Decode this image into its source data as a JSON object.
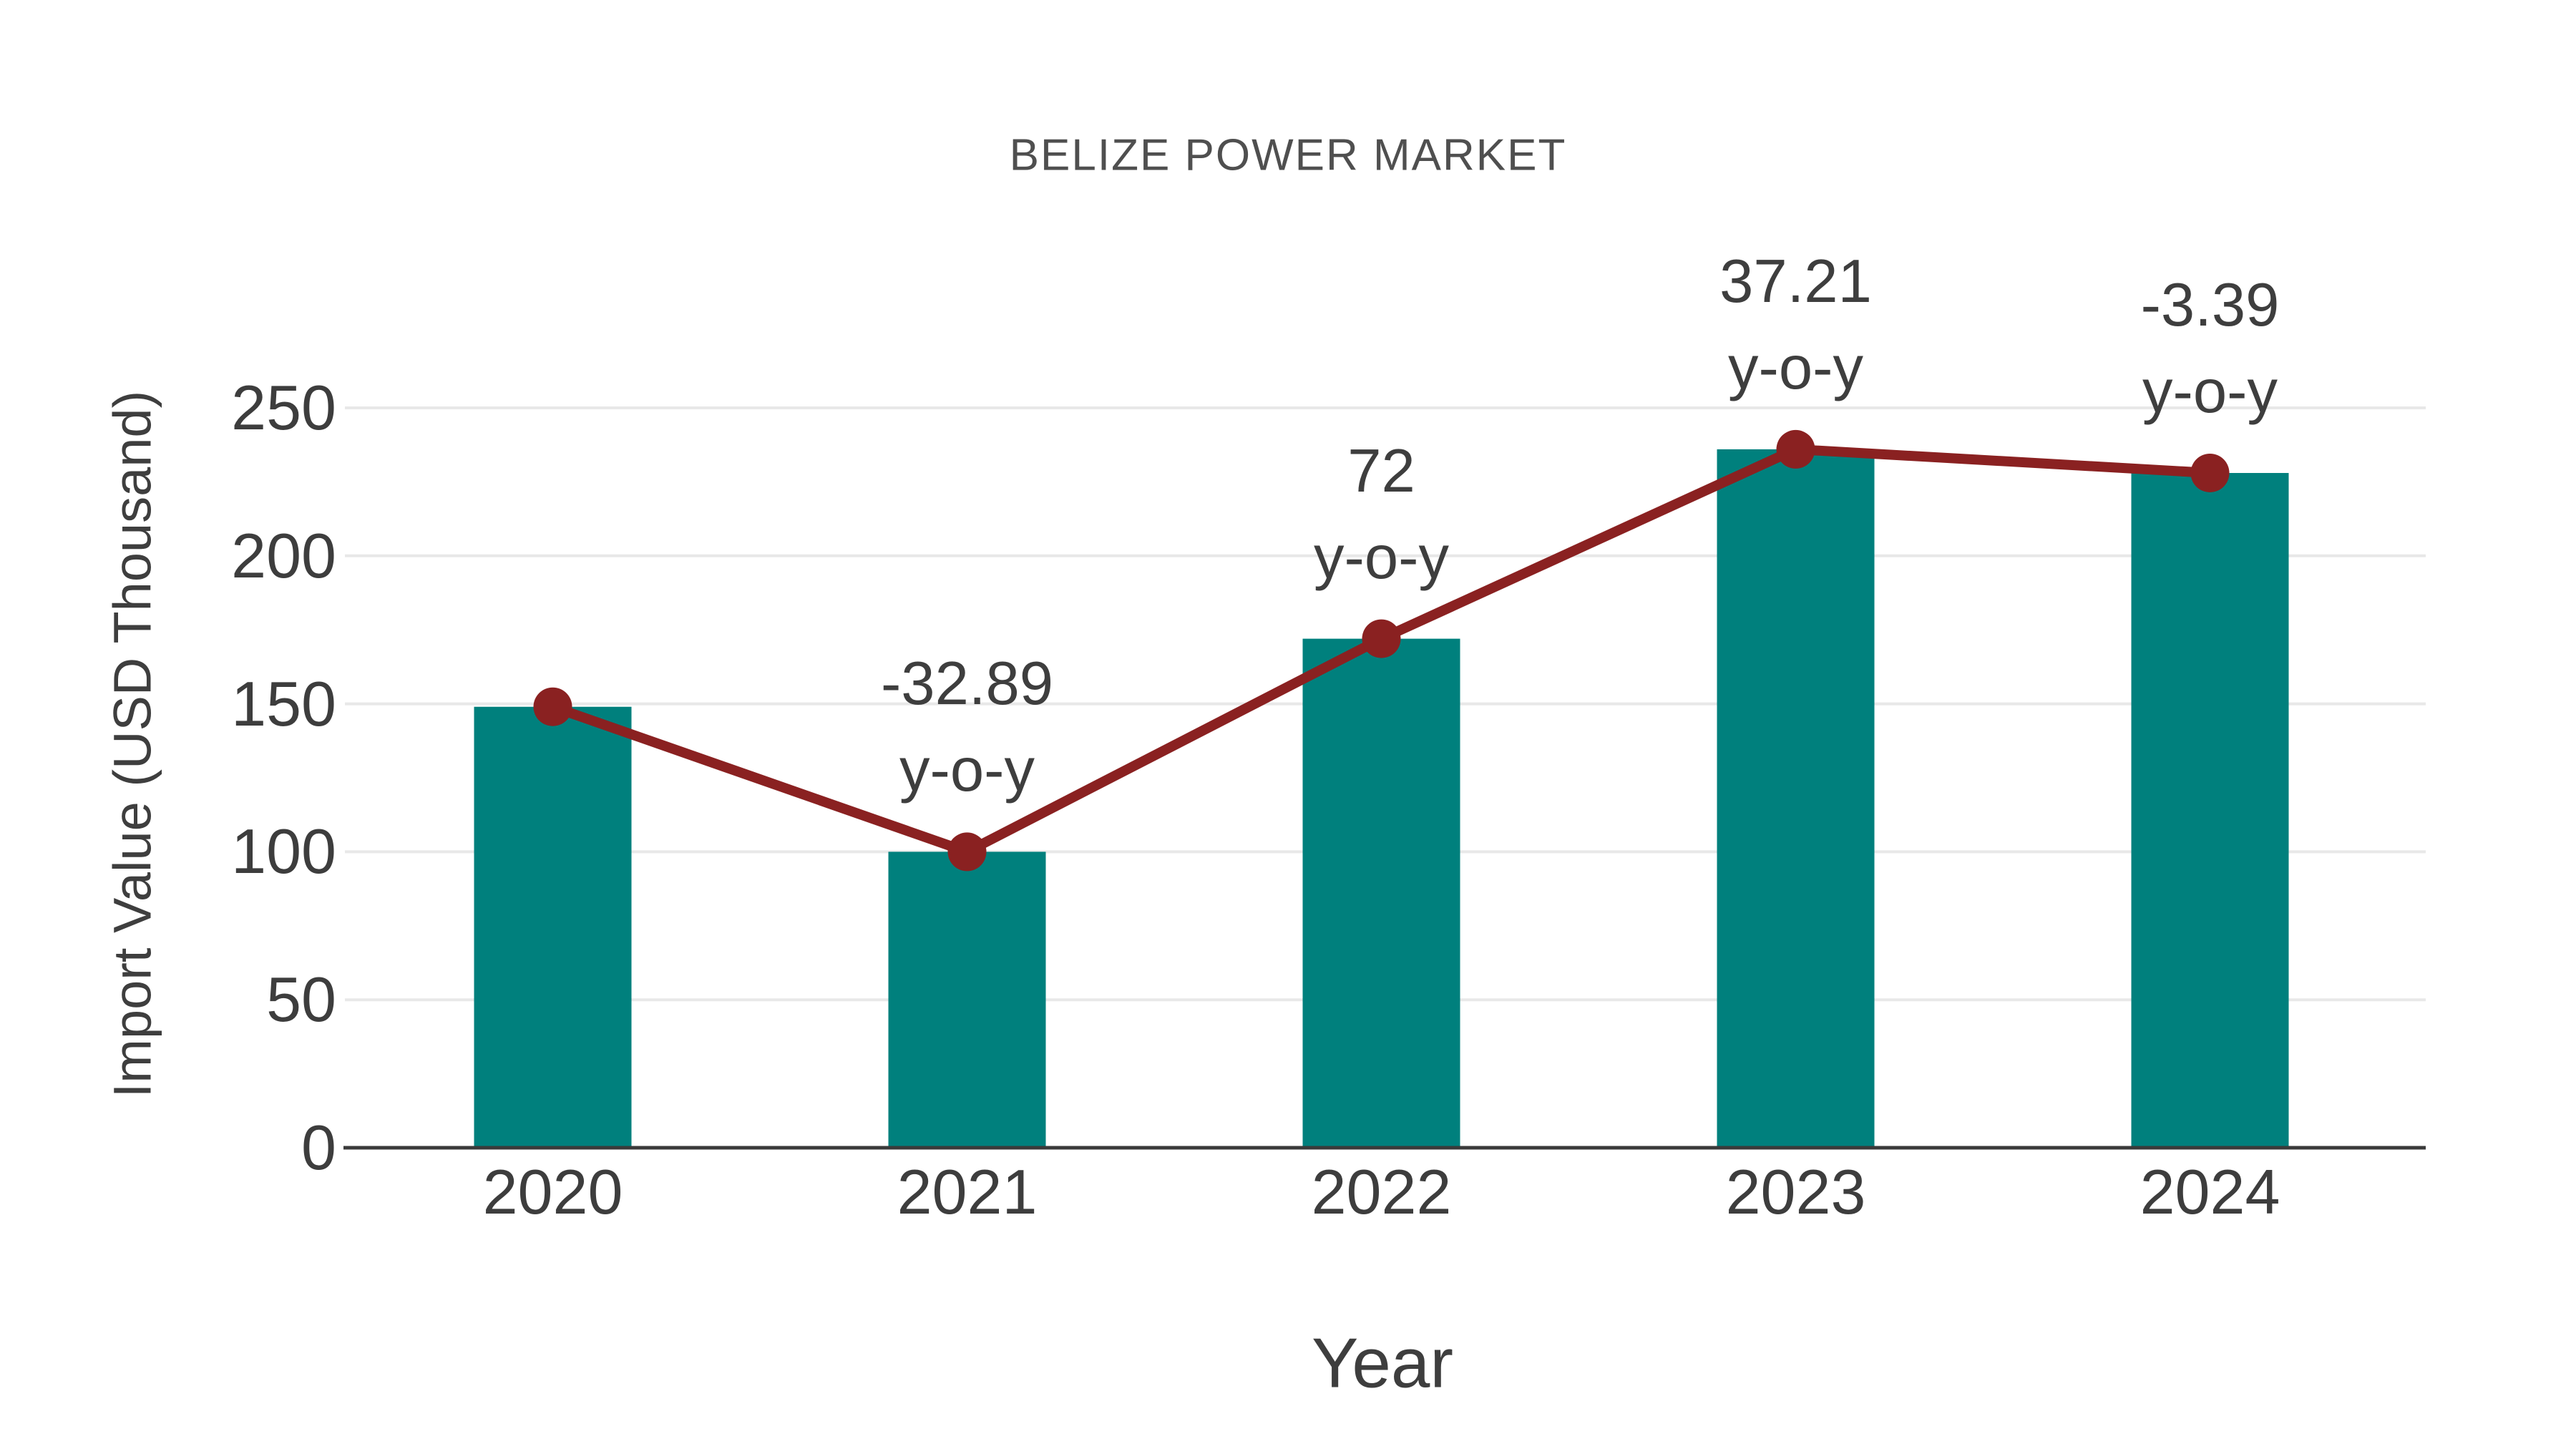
{
  "chart_data": {
    "type": "bar",
    "title": "BELIZE POWER MARKET",
    "xlabel": "Year",
    "ylabel": "Import Value (USD Thousand)",
    "categories": [
      "2020",
      "2021",
      "2022",
      "2023",
      "2024"
    ],
    "series": [
      {
        "name": "import-value-bars",
        "type": "bar",
        "values": [
          149,
          100,
          172,
          236,
          228
        ]
      },
      {
        "name": "import-value-trend-line",
        "type": "line",
        "values": [
          149,
          100,
          172,
          236,
          228
        ]
      }
    ],
    "annotations": [
      {
        "category": "2021",
        "line1": "-32.89",
        "line2": "y-o-y"
      },
      {
        "category": "2022",
        "line1": "72",
        "line2": "y-o-y"
      },
      {
        "category": "2023",
        "line1": "37.21",
        "line2": "y-o-y"
      },
      {
        "category": "2024",
        "line1": "-3.39",
        "line2": "y-o-y"
      }
    ],
    "yticks": [
      0,
      50,
      100,
      150,
      200,
      250
    ],
    "ylim": [
      0,
      250
    ],
    "grid": true,
    "legend_position": "none",
    "colors": {
      "bar": "#00807D",
      "line": "#8A2121",
      "marker": "#8A2121",
      "text": "#3d3d3d",
      "title_text": "#4f4f4f",
      "gridline": "#e8e8e8",
      "axis_line": "#3a3a3a",
      "background": "#ffffff"
    }
  }
}
